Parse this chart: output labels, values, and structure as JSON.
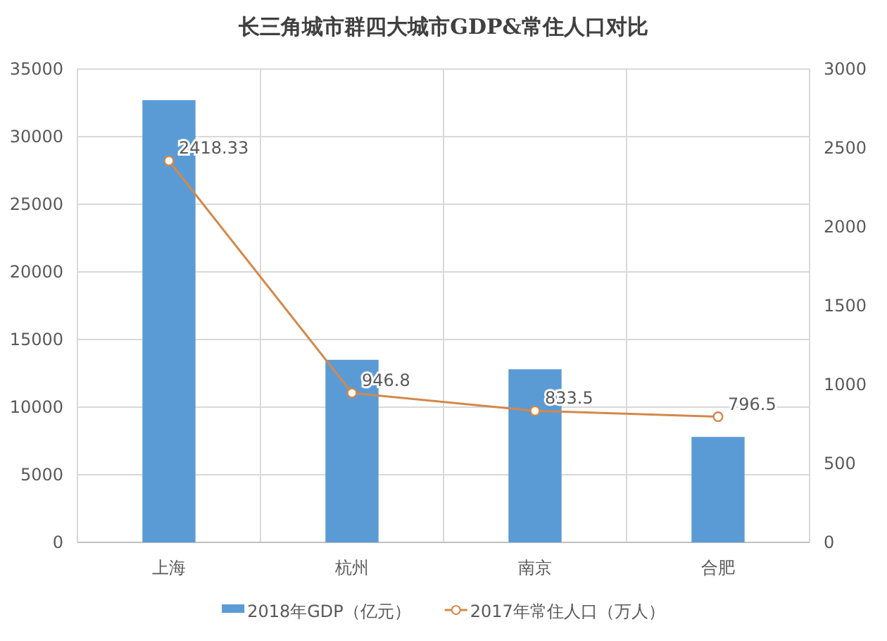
{
  "chart_data": {
    "type": "bar",
    "title": "长三角城市群四大城市GDP&常住人口对比",
    "categories": [
      "上海",
      "杭州",
      "南京",
      "合肥"
    ],
    "series": [
      {
        "name": "2018年GDP（亿元）",
        "color": "#5b9bd5",
        "values": [
          32700,
          13500,
          12800,
          7800
        ]
      },
      {
        "name": "2017年常住人口（万人）",
        "type": "line",
        "axis": "y2",
        "color": "#d4884a",
        "values": [
          2418.33,
          946.8,
          833.5,
          796.5
        ],
        "value_labels": [
          "2418.33",
          "946.8",
          "833.5",
          "796.5"
        ]
      }
    ],
    "ylim": [
      0,
      35000
    ],
    "yticks": [
      0,
      5000,
      10000,
      15000,
      20000,
      25000,
      30000,
      35000
    ],
    "y2lim": [
      0,
      3000
    ],
    "y2ticks": [
      0,
      500,
      1000,
      1500,
      2000,
      2500,
      3000
    ],
    "grid": true,
    "legend": "bottom",
    "marker": "circle"
  }
}
